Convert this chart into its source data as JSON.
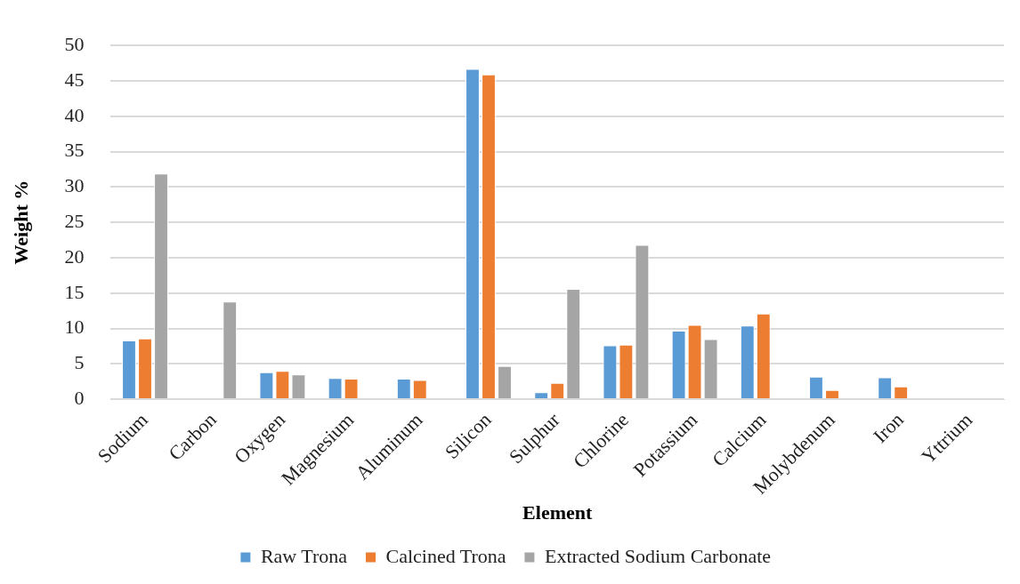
{
  "chart_data": {
    "type": "bar",
    "xlabel": "Element",
    "ylabel": "Weight %",
    "categories": [
      "Sodium",
      "Carbon",
      "Oxygen",
      "Magnesium",
      "Aluminum",
      "Silicon",
      "Sulphur",
      "Chlorine",
      "Potassium",
      "Calcium",
      "Molybdenum",
      "Iron",
      "Yttrium"
    ],
    "series": [
      {
        "name": "Raw Trona",
        "color": "#5b9bd5",
        "values": [
          8.3,
          0,
          3.8,
          3.0,
          2.9,
          46.7,
          1.0,
          7.6,
          9.7,
          10.4,
          3.2,
          3.1,
          0
        ]
      },
      {
        "name": "Calcined Trona",
        "color": "#ed7d31",
        "values": [
          8.6,
          0,
          4.0,
          2.9,
          2.7,
          45.9,
          2.3,
          7.7,
          10.5,
          12.1,
          1.3,
          1.8,
          0
        ]
      },
      {
        "name": "Extracted Sodium Carbonate",
        "color": "#a5a5a5",
        "values": [
          31.9,
          13.8,
          3.5,
          0,
          0,
          4.7,
          15.6,
          21.8,
          8.5,
          0,
          0,
          0,
          0
        ]
      }
    ],
    "ylim": [
      0,
      50
    ],
    "yticks": [
      0,
      5,
      10,
      15,
      20,
      25,
      30,
      35,
      40,
      45,
      50
    ],
    "grid": "y",
    "legend": "bottom"
  }
}
